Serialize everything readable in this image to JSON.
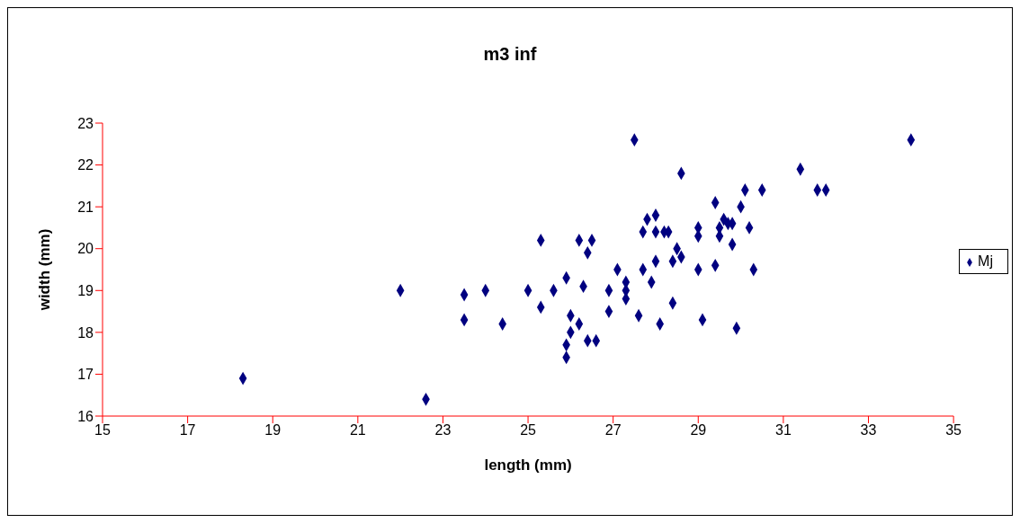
{
  "chart_data": {
    "type": "scatter",
    "title": "m3 inf",
    "xlabel": "length (mm)",
    "ylabel": "width (mm)",
    "xlim": [
      15,
      35
    ],
    "xticks": [
      15,
      17,
      19,
      21,
      23,
      25,
      27,
      29,
      31,
      33,
      35
    ],
    "ylim": [
      16,
      23
    ],
    "yticks": [
      16,
      17,
      18,
      19,
      20,
      21,
      22,
      23
    ],
    "grid": false,
    "legend": "right",
    "marker": "diamond",
    "series": [
      {
        "name": "Mj",
        "color": "#000080",
        "x": [
          18.3,
          22.0,
          22.6,
          23.5,
          23.5,
          24.0,
          24.4,
          25.0,
          25.3,
          25.3,
          25.6,
          25.9,
          25.9,
          25.9,
          26.0,
          26.0,
          26.2,
          26.2,
          26.3,
          26.4,
          26.4,
          26.5,
          26.6,
          26.9,
          26.9,
          27.1,
          27.3,
          27.3,
          27.3,
          27.5,
          27.6,
          27.7,
          27.7,
          27.8,
          27.9,
          28.0,
          28.0,
          28.0,
          28.1,
          28.2,
          28.3,
          28.4,
          28.4,
          28.5,
          28.6,
          28.6,
          29.0,
          29.0,
          29.0,
          29.1,
          29.4,
          29.4,
          29.5,
          29.5,
          29.6,
          29.7,
          29.8,
          29.8,
          29.9,
          30.0,
          30.1,
          30.2,
          30.3,
          30.5,
          31.4,
          31.8,
          32.0,
          34.0
        ],
        "values": [
          16.9,
          19.0,
          16.4,
          18.9,
          18.3,
          19.0,
          18.2,
          19.0,
          20.2,
          18.6,
          19.0,
          19.3,
          17.7,
          17.4,
          18.4,
          18.0,
          20.2,
          18.2,
          19.1,
          19.9,
          17.8,
          20.2,
          17.8,
          19.0,
          18.5,
          19.5,
          19.2,
          19.0,
          18.8,
          22.6,
          18.4,
          20.4,
          19.5,
          20.7,
          19.2,
          20.8,
          20.4,
          19.7,
          18.2,
          20.4,
          20.4,
          19.7,
          18.7,
          20.0,
          21.8,
          19.8,
          20.5,
          20.3,
          19.5,
          18.3,
          21.1,
          19.6,
          20.5,
          20.3,
          20.7,
          20.6,
          20.6,
          20.1,
          18.1,
          21.0,
          21.4,
          20.5,
          19.5,
          21.4,
          21.9,
          21.4,
          21.4,
          22.6
        ]
      }
    ]
  }
}
